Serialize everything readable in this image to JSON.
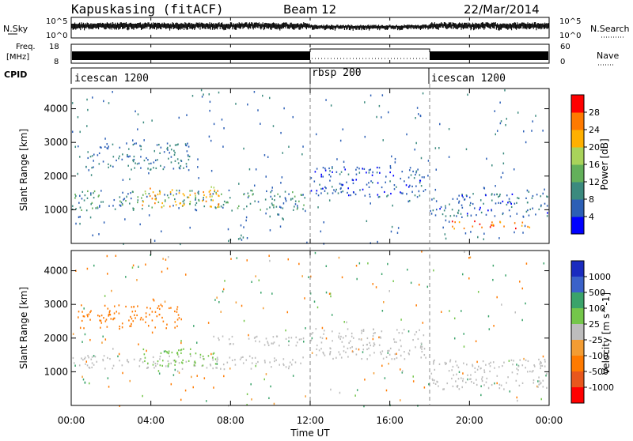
{
  "header": {
    "station": "Kapuskasing (fitACF)",
    "beam": "Beam 12",
    "date": "22/Mar/2014"
  },
  "nsky_panel": {
    "label": "N.Sky",
    "left_ticks": [
      "10^5",
      "10^0"
    ],
    "right_ticks": [
      "10^5",
      "10^0"
    ],
    "right_label": "N.Search"
  },
  "freq_panel": {
    "label_line1": "Freq.",
    "label_line2": "[MHz]",
    "left_ticks": [
      "18",
      "8"
    ],
    "right_ticks": [
      "60",
      "0"
    ],
    "right_label": "Nave",
    "nave_dotted_segment": {
      "start_hour": 12,
      "end_hour": 18
    }
  },
  "cpid_panel": {
    "label": "CPID",
    "segments": [
      {
        "name": "icescan 1200",
        "start_hour": 0,
        "end_hour": 12
      },
      {
        "name": "rbsp 200",
        "start_hour": 12,
        "end_hour": 18
      },
      {
        "name": "icescan 1200",
        "start_hour": 18,
        "end_hour": 24
      }
    ]
  },
  "x_axis": {
    "label": "Time UT",
    "ticks": [
      "00:00",
      "04:00",
      "08:00",
      "12:00",
      "16:00",
      "20:00",
      "00:00"
    ],
    "range_hours": [
      0,
      24
    ]
  },
  "colors": {
    "scatter_blue": "#2a4fb0",
    "scatter_green": "#6aa84f",
    "scatter_orange": "#e69138",
    "scatter_red": "#e03c2c",
    "scatter_gray": "#bdbdbd"
  },
  "chart_data": [
    {
      "type": "heatmap",
      "panel": "power",
      "ylabel": "Slant Range [km]",
      "yticks": [
        "1000",
        "2000",
        "3000",
        "4000"
      ],
      "ylim": [
        0,
        4600
      ],
      "xlim": [
        0,
        24
      ],
      "colorbar": {
        "label": "Power [dB]",
        "ticks": [
          "4",
          "8",
          "12",
          "16",
          "20",
          "24",
          "28"
        ],
        "colors": [
          "#0000ff",
          "#2c5fb6",
          "#3b8a7e",
          "#63b05a",
          "#a9d35a",
          "#ffb000",
          "#ff7a00",
          "#ff0000"
        ]
      },
      "echo_regions": [
        {
          "start": 0.0,
          "end": 11.8,
          "range_lo": 1000,
          "range_hi": 1600,
          "value": 10
        },
        {
          "start": 0.3,
          "end": 6.0,
          "range_lo": 2200,
          "range_hi": 3000,
          "value": 8
        },
        {
          "start": 3.5,
          "end": 7.5,
          "range_lo": 1100,
          "range_hi": 1700,
          "value": 22
        },
        {
          "start": 12.0,
          "end": 17.8,
          "range_lo": 1400,
          "range_hi": 2300,
          "value": 6
        },
        {
          "start": 18.0,
          "end": 23.9,
          "range_lo": 800,
          "range_hi": 1500,
          "value": 7
        },
        {
          "start": 19.0,
          "end": 23.0,
          "range_lo": 450,
          "range_hi": 700,
          "value": 26
        }
      ]
    },
    {
      "type": "heatmap",
      "panel": "velocity",
      "ylabel": "Slant Range [km]",
      "yticks": [
        "1000",
        "2000",
        "3000",
        "4000"
      ],
      "ylim": [
        0,
        4600
      ],
      "xlim": [
        0,
        24
      ],
      "colorbar": {
        "label": "Velocity [m s^-1]",
        "ticks": [
          "1000",
          "500",
          "100",
          "25",
          "-25",
          "-100",
          "-500",
          "-1000"
        ],
        "colors": [
          "#1a2bbf",
          "#3b62c9",
          "#3aa36a",
          "#74c64a",
          "#bdbdbd",
          "#f39c33",
          "#ff7a00",
          "#e8571d",
          "#ff0000"
        ]
      },
      "echo_regions": [
        {
          "start": 0.0,
          "end": 11.8,
          "range_lo": 1100,
          "range_hi": 1500,
          "value": 0
        },
        {
          "start": 0.3,
          "end": 5.5,
          "range_lo": 2300,
          "range_hi": 3000,
          "value": -200
        },
        {
          "start": 3.5,
          "end": 7.5,
          "range_lo": 1200,
          "range_hi": 1700,
          "value": 50
        },
        {
          "start": 7.0,
          "end": 11.8,
          "range_lo": 1800,
          "range_hi": 2100,
          "value": 0
        },
        {
          "start": 12.0,
          "end": 17.8,
          "range_lo": 1400,
          "range_hi": 2300,
          "value": 0
        },
        {
          "start": 18.0,
          "end": 23.9,
          "range_lo": 500,
          "range_hi": 1400,
          "value": 0
        }
      ]
    }
  ]
}
